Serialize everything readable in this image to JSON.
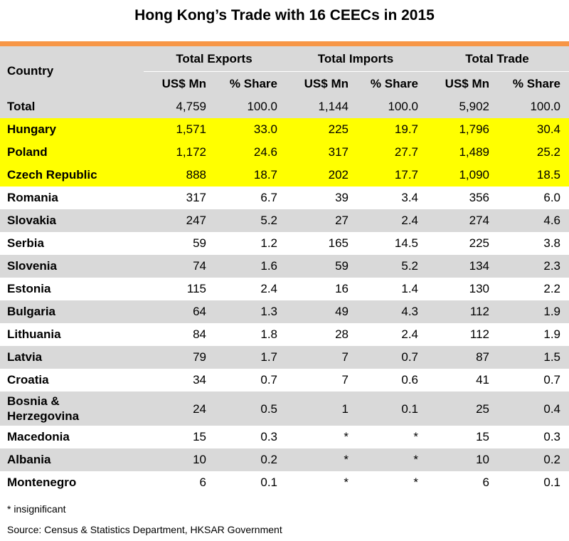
{
  "title": "Hong Kong’s Trade with 16 CEECs in 2015",
  "header": {
    "country": "Country",
    "groups": [
      "Total Exports",
      "Total Imports",
      "Total Trade"
    ],
    "subheaders": [
      "US$ Mn",
      "% Share",
      "US$ Mn",
      "% Share",
      "US$ Mn",
      "% Share"
    ]
  },
  "rows": [
    {
      "country": "Total",
      "values": [
        "4,759",
        "100.0",
        "1,144",
        "100.0",
        "5,902",
        "100.0"
      ],
      "highlight": false
    },
    {
      "country": "Hungary",
      "values": [
        "1,571",
        "33.0",
        "225",
        "19.7",
        "1,796",
        "30.4"
      ],
      "highlight": true
    },
    {
      "country": "Poland",
      "values": [
        "1,172",
        "24.6",
        "317",
        "27.7",
        "1,489",
        "25.2"
      ],
      "highlight": true
    },
    {
      "country": "Czech Republic",
      "values": [
        "888",
        "18.7",
        "202",
        "17.7",
        "1,090",
        "18.5"
      ],
      "highlight": true
    },
    {
      "country": "Romania",
      "values": [
        "317",
        "6.7",
        "39",
        "3.4",
        "356",
        "6.0"
      ],
      "highlight": false
    },
    {
      "country": "Slovakia",
      "values": [
        "247",
        "5.2",
        "27",
        "2.4",
        "274",
        "4.6"
      ],
      "highlight": false
    },
    {
      "country": "Serbia",
      "values": [
        "59",
        "1.2",
        "165",
        "14.5",
        "225",
        "3.8"
      ],
      "highlight": false
    },
    {
      "country": "Slovenia",
      "values": [
        "74",
        "1.6",
        "59",
        "5.2",
        "134",
        "2.3"
      ],
      "highlight": false
    },
    {
      "country": "Estonia",
      "values": [
        "115",
        "2.4",
        "16",
        "1.4",
        "130",
        "2.2"
      ],
      "highlight": false
    },
    {
      "country": "Bulgaria",
      "values": [
        "64",
        "1.3",
        "49",
        "4.3",
        "112",
        "1.9"
      ],
      "highlight": false
    },
    {
      "country": "Lithuania",
      "values": [
        "84",
        "1.8",
        "28",
        "2.4",
        "112",
        "1.9"
      ],
      "highlight": false
    },
    {
      "country": "Latvia",
      "values": [
        "79",
        "1.7",
        "7",
        "0.7",
        "87",
        "1.5"
      ],
      "highlight": false
    },
    {
      "country": "Croatia",
      "values": [
        "34",
        "0.7",
        "7",
        "0.6",
        "41",
        "0.7"
      ],
      "highlight": false
    },
    {
      "country": "Bosnia &\nHerzegovina",
      "values": [
        "24",
        "0.5",
        "1",
        "0.1",
        "25",
        "0.4"
      ],
      "highlight": false
    },
    {
      "country": "Macedonia",
      "values": [
        "15",
        "0.3",
        "*",
        "*",
        "15",
        "0.3"
      ],
      "highlight": false
    },
    {
      "country": "Albania",
      "values": [
        "10",
        "0.2",
        "*",
        "*",
        "10",
        "0.2"
      ],
      "highlight": false
    },
    {
      "country": "Montenegro",
      "values": [
        "6",
        "0.1",
        "*",
        "*",
        "6",
        "0.1"
      ],
      "highlight": false
    }
  ],
  "colors": {
    "accent_bar": "#f79646",
    "header_bg": "#d9d9d9",
    "row_grey": "#d9d9d9",
    "row_white": "#ffffff",
    "highlight": "#ffff00"
  },
  "footnote": "* insignificant",
  "source": "Source: Census & Statistics Department, HKSAR Government"
}
